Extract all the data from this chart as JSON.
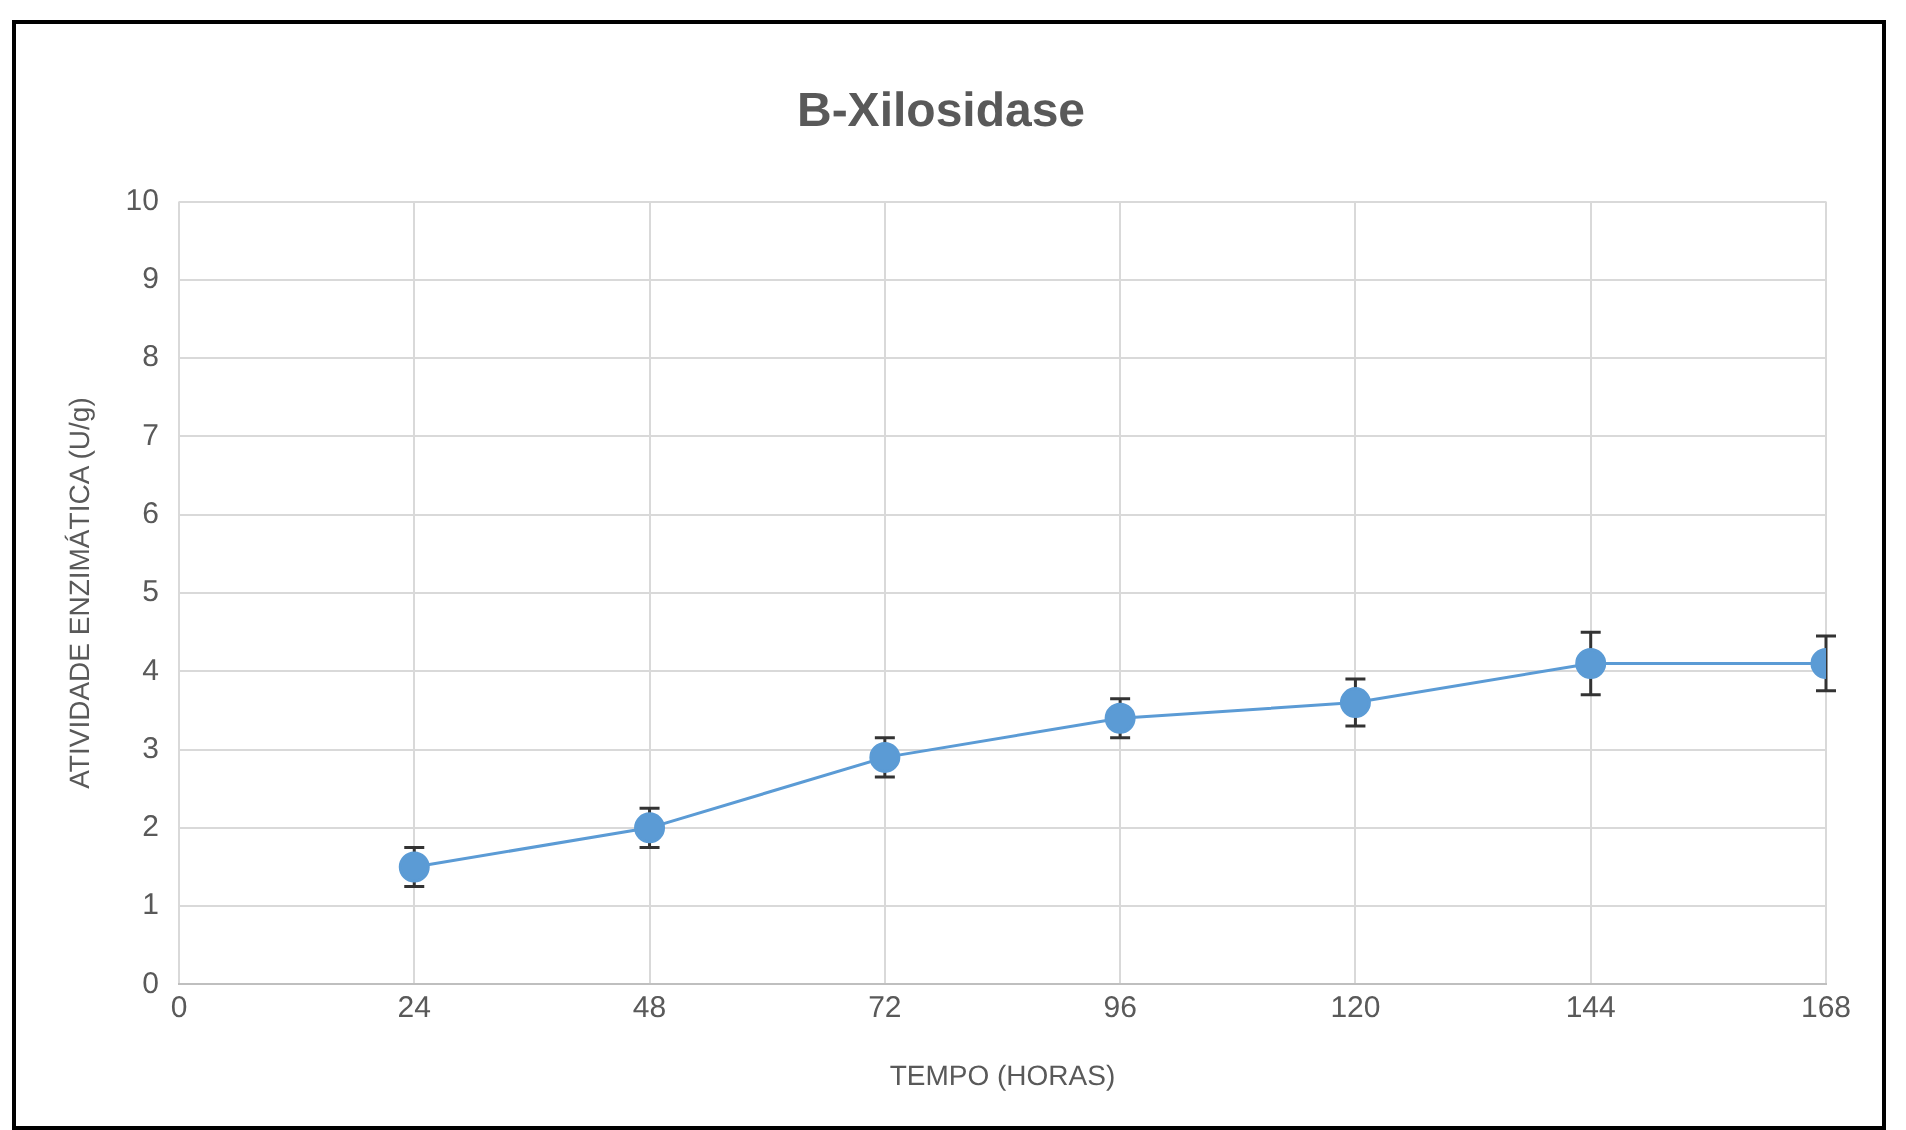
{
  "chart_data": {
    "type": "line",
    "title": "B-Xilosidase",
    "xlabel": "TEMPO (HORAS)",
    "ylabel": "ATIVIDADE ENZIMÁTICA (U/g)",
    "x": [
      24,
      48,
      72,
      96,
      120,
      144,
      168
    ],
    "series": [
      {
        "color": "#5b9bd5",
        "values": [
          1.5,
          2.0,
          2.9,
          3.4,
          3.6,
          4.1,
          4.1
        ],
        "errors": [
          0.25,
          0.25,
          0.25,
          0.25,
          0.3,
          0.4,
          0.35
        ]
      }
    ],
    "xlim": [
      0,
      168
    ],
    "xticks": [
      0,
      24,
      48,
      72,
      96,
      120,
      144,
      168
    ],
    "ylim": [
      0,
      10
    ],
    "yticks": [
      0,
      1,
      2,
      3,
      4,
      5,
      6,
      7,
      8,
      9,
      10
    ],
    "grid": true,
    "legend": false,
    "marker": "circle",
    "line_style": "solid"
  }
}
